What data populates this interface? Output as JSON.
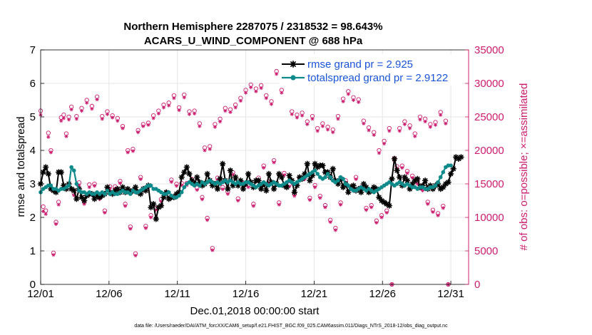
{
  "chart_data": {
    "type": "line",
    "title_line1": "Northern Hemisphere 2287075 / 2318532 = 98.643%",
    "title_line2": "ACARS_U_WIND_COMPONENT @ 688 hPa",
    "xlabel": "Dec.01,2018 00:00:00 start",
    "ylabel_left": "rmse and totalspread",
    "ylabel_right": "# of obs: o=possible; ×=assimilated",
    "footnote": "data file: /Users/raeder/DAI/ATM_forcXX/CAM6_setup/f.e21.FHIST_BGC.f09_025.CAM6assim.011/Diags_NTrS_2018-12/obs_diag_output.nc",
    "xlim": [
      1,
      32.3
    ],
    "ylim_left": [
      0,
      7
    ],
    "ylim_right": [
      0,
      35000
    ],
    "x_ticks": [
      1,
      6,
      11,
      16,
      21,
      26,
      31
    ],
    "x_tick_labels": [
      "12/01",
      "12/06",
      "12/11",
      "12/16",
      "12/21",
      "12/26",
      "12/31"
    ],
    "y_ticks_left": [
      "0",
      "1",
      "2",
      "3",
      "4",
      "5",
      "6",
      "7"
    ],
    "y_ticks_right": [
      "0",
      "5000",
      "10000",
      "15000",
      "20000",
      "25000",
      "30000",
      "35000"
    ],
    "colors": {
      "rmse": "#000000",
      "spread": "#0f8a8a",
      "obs": "#cc1c6e",
      "legend_text": "#1a55d9"
    },
    "series": [
      {
        "name": "rmse grand pr = 2.925",
        "key": "rmse",
        "values": [
          3.0,
          3.35,
          3.5,
          3.3,
          2.85,
          2.8,
          2.75,
          3.35,
          3.35,
          2.95,
          2.85,
          3.0,
          2.85,
          2.8,
          2.55,
          2.85,
          2.6,
          2.5,
          2.65,
          2.7,
          2.7,
          2.55,
          2.65,
          2.6,
          2.65,
          2.7,
          2.9,
          2.75,
          2.7,
          2.8,
          2.85,
          2.75,
          2.9,
          2.75,
          2.85,
          2.75,
          2.8,
          2.9,
          2.75,
          2.7,
          2.85,
          2.8,
          2.95,
          2.3,
          2.4,
          1.95,
          2.3,
          2.35,
          2.6,
          2.75,
          2.55,
          2.6,
          2.6,
          2.7,
          2.75,
          3.2,
          3.35,
          3.5,
          3.3,
          3.1,
          3.0,
          3.2,
          3.05,
          2.95,
          3.0,
          3.3,
          3.1,
          2.95,
          3.0,
          2.85,
          3.15,
          3.6,
          3.1,
          2.85,
          3.4,
          2.95,
          3.2,
          2.95,
          3.1,
          2.85,
          3.0,
          3.3,
          3.05,
          2.9,
          3.1,
          3.1,
          2.85,
          3.0,
          2.8,
          3.3,
          3.05,
          2.85,
          3.0,
          3.3,
          3.2,
          2.95,
          2.9,
          3.25,
          3.1,
          2.75,
          2.95,
          3.2,
          3.15,
          3.3,
          3.6,
          3.1,
          3.25,
          3.6,
          3.5,
          3.55,
          3.55,
          3.35,
          3.35,
          3.2,
          3.45,
          3.1,
          3.0,
          3.15,
          2.9,
          3.0,
          2.75,
          2.9,
          2.95,
          2.8,
          2.85,
          2.75,
          3.0,
          2.9,
          2.75,
          2.8,
          2.9,
          2.85,
          2.6,
          2.5,
          2.45,
          2.4,
          2.35,
          3.15,
          3.75,
          3.4,
          3.2,
          2.95,
          3.2,
          3.1,
          2.85,
          3.0,
          3.1,
          3.15,
          2.9,
          2.95,
          3.1,
          2.85,
          2.95,
          2.85,
          2.95,
          3.0,
          2.85,
          2.9,
          3.0,
          3.05,
          3.3,
          3.45,
          3.8,
          3.75,
          3.8
        ]
      },
      {
        "name": "totalspread grand pr = 2.9122",
        "key": "spread",
        "values": [
          2.75,
          2.85,
          2.9,
          2.95,
          2.95,
          2.85,
          2.85,
          2.8,
          2.85,
          2.85,
          2.9,
          2.95,
          3.5,
          3.4,
          3.0,
          2.8,
          2.75,
          2.75,
          2.7,
          2.75,
          2.7,
          2.7,
          2.75,
          2.7,
          2.75,
          2.7,
          2.8,
          2.7,
          2.75,
          2.7,
          2.7,
          2.75,
          2.8,
          2.75,
          2.75,
          2.7,
          2.8,
          2.75,
          2.75,
          2.8,
          2.85,
          2.9,
          2.95,
          2.95,
          2.85,
          2.85,
          2.8,
          2.75,
          2.7,
          2.7,
          2.75,
          2.65,
          2.6,
          2.6,
          2.65,
          2.75,
          2.9,
          3.0,
          3.05,
          3.0,
          2.95,
          3.0,
          2.95,
          3.05,
          3.0,
          3.05,
          3.1,
          3.05,
          3.0,
          3.05,
          3.0,
          3.05,
          3.1,
          3.05,
          3.1,
          3.05,
          3.0,
          3.05,
          3.0,
          3.0,
          3.05,
          3.05,
          3.0,
          2.95,
          2.9,
          2.95,
          3.0,
          3.05,
          3.0,
          2.95,
          3.0,
          3.05,
          3.0,
          2.95,
          2.95,
          3.0,
          3.05,
          3.1,
          3.05,
          3.0,
          3.05,
          3.1,
          3.15,
          3.2,
          3.25,
          3.3,
          3.35,
          3.4,
          3.3,
          3.2,
          3.15,
          3.2,
          3.3,
          3.2,
          3.1,
          3.05,
          3.1,
          3.2,
          3.15,
          3.0,
          2.95,
          2.85,
          2.8,
          2.8,
          2.85,
          2.9,
          2.85,
          2.8,
          2.85,
          2.8,
          2.75,
          2.8,
          2.85,
          2.9,
          2.95,
          3.0,
          3.05,
          3.0,
          2.95,
          3.0,
          3.05,
          3.0,
          2.95,
          3.0,
          2.95,
          2.9,
          2.9,
          2.85,
          2.9,
          2.9,
          2.85,
          2.85,
          2.9,
          2.9,
          2.95,
          3.05,
          3.2,
          3.35,
          3.5,
          3.55,
          3.55
        ]
      },
      {
        "name": "obs possible",
        "key": "possible",
        "values": [
          25900,
          11600,
          11000,
          22600,
          20000,
          4700,
          9300,
          12300,
          24900,
          25300,
          22500,
          25000,
          26500,
          13600,
          25100,
          15200,
          26300,
          12300,
          27500,
          14900,
          26600,
          15000,
          28000,
          13000,
          25100,
          11000,
          25800,
          14600,
          25200,
          14600,
          24800,
          15400,
          23600,
          12000,
          20000,
          8600,
          20200,
          4600,
          23000,
          16000,
          23900,
          8700,
          24100,
          10300,
          25200,
          11400,
          25900,
          12700,
          26800,
          13700,
          27100,
          15600,
          28200,
          15000,
          26400,
          15100,
          28300,
          15100,
          25800,
          15700,
          25900,
          14400,
          24000,
          13000,
          20400,
          9900,
          20600,
          5400,
          23900,
          15900,
          24700,
          14500,
          26300,
          13800,
          26100,
          16700,
          26800,
          12800,
          27800,
          15100,
          29000,
          14800,
          29800,
          12000,
          29200,
          15900,
          29700,
          17700,
          28200,
          15400,
          27300,
          18500,
          31800,
          12200,
          29000,
          16600,
          30400,
          14900,
          25800,
          13500,
          25300,
          15900,
          25600,
          16000,
          24300,
          12900,
          25100,
          14800,
          23300,
          13200,
          24000,
          11800,
          23500,
          9600,
          23100,
          8400,
          25100,
          12200,
          27700,
          15500,
          28800,
          14500,
          27900,
          16000,
          27600,
          14500,
          24400,
          11400,
          23400,
          11800,
          22700,
          9500,
          20000,
          10300,
          21400,
          11000,
          23300,
          0,
          18800,
          17600,
          23300,
          17700,
          24300,
          16900,
          23700,
          16200,
          22500,
          15300,
          25000,
          14300,
          24700,
          12300,
          23900,
          11100,
          24200,
          10600,
          25700,
          11700,
          24400,
          0
        ]
      },
      {
        "name": "obs assimilated",
        "key": "assimilated",
        "values": [
          25300,
          10900,
          10500,
          22000,
          19700,
          4400,
          9000,
          11900,
          24400,
          24800,
          22100,
          24600,
          26100,
          13300,
          24700,
          14800,
          25900,
          12000,
          27100,
          14500,
          26200,
          14700,
          27600,
          12700,
          24700,
          10700,
          25400,
          14300,
          24900,
          14300,
          24400,
          15100,
          23300,
          11700,
          19700,
          8300,
          19900,
          4300,
          22700,
          15700,
          23600,
          8400,
          23800,
          10000,
          24800,
          11100,
          25500,
          12400,
          26400,
          13400,
          26700,
          15300,
          27800,
          14700,
          26000,
          14800,
          27900,
          14800,
          25400,
          15400,
          25500,
          14100,
          23600,
          12700,
          20000,
          9600,
          20200,
          5100,
          23500,
          15600,
          24300,
          14200,
          25900,
          13500,
          25700,
          16400,
          26400,
          12500,
          27400,
          14800,
          28600,
          14500,
          29400,
          11700,
          28800,
          15600,
          29300,
          17400,
          27800,
          15100,
          26900,
          18200,
          31400,
          11900,
          28600,
          16300,
          30000,
          14600,
          25400,
          13200,
          24900,
          15600,
          25200,
          15700,
          23900,
          12600,
          24700,
          14500,
          22900,
          12900,
          23600,
          11500,
          23100,
          9300,
          22700,
          8100,
          24700,
          11900,
          27300,
          15200,
          28400,
          14200,
          27500,
          15700,
          27200,
          14200,
          24000,
          11100,
          23000,
          11500,
          22300,
          9200,
          19600,
          10000,
          21000,
          10700,
          22900,
          0,
          18400,
          17300,
          22900,
          17400,
          23900,
          16600,
          23300,
          15900,
          22100,
          15000,
          24600,
          14000,
          24300,
          12000,
          23500,
          10800,
          23800,
          10300,
          25300,
          11400,
          24000,
          0
        ]
      }
    ]
  }
}
